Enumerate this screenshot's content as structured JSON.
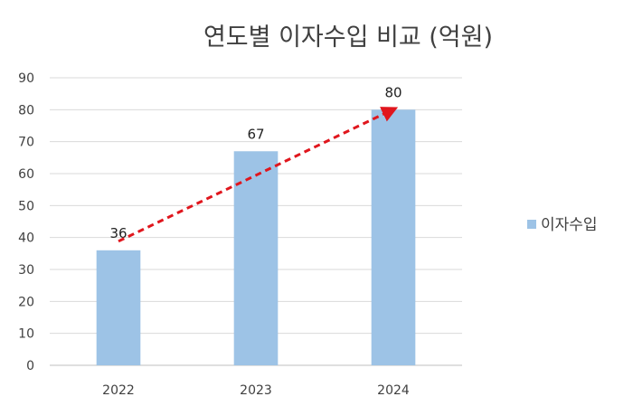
{
  "chart_data": {
    "type": "bar",
    "title": "연도별 이자수입 비교 (억원)",
    "categories": [
      "2022",
      "2023",
      "2024"
    ],
    "series": [
      {
        "name": "이자수입",
        "values": [
          36,
          67,
          80
        ],
        "color": "#9dc3e6"
      }
    ],
    "ylim": [
      0,
      90
    ],
    "yticks": [
      0,
      10,
      20,
      30,
      40,
      50,
      60,
      70,
      80,
      90
    ],
    "grid": true,
    "legend": "right",
    "annotation": {
      "type": "trend-arrow",
      "from": "2022",
      "to": "2024",
      "color": "#e0161d",
      "style": "dashed"
    }
  }
}
